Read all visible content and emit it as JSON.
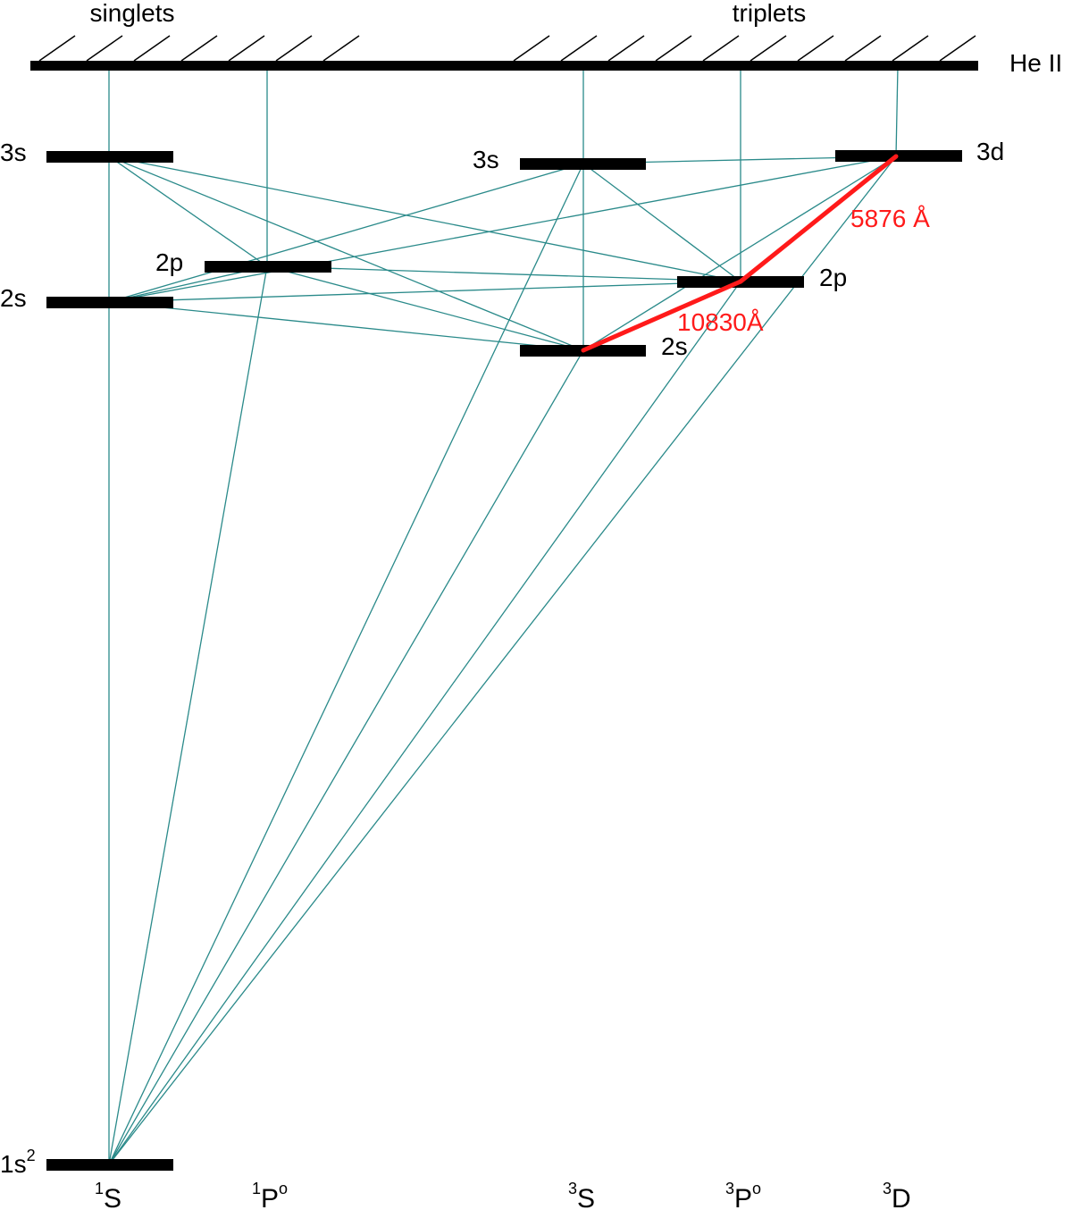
{
  "header": {
    "singlets_label": "singlets",
    "triplets_label": "triplets",
    "ionization_label": "He II"
  },
  "levels": {
    "singlet_3s": "3s",
    "singlet_2p": "2p",
    "singlet_2s": "2s",
    "ground_main": "1s",
    "ground_sup": "2",
    "triplet_3s": "3s",
    "triplet_3d": "3d",
    "triplet_2p": "2p",
    "triplet_2s": "2s"
  },
  "terms": {
    "1S": {
      "sup": "1",
      "main": "S"
    },
    "1Po": {
      "sup": "1",
      "main": "P",
      "post": "o"
    },
    "3S": {
      "sup": "3",
      "main": "S"
    },
    "3Po": {
      "sup": "3",
      "main": "P",
      "post": "o"
    },
    "3D": {
      "sup": "3",
      "main": "D"
    }
  },
  "highlighted_lines": {
    "he_5876": "5876 Å",
    "he_10830": "10830Å"
  },
  "colors": {
    "level_bar": "#000000",
    "transition_line": "#2a8a8a",
    "highlight": "#ff1a1a"
  }
}
